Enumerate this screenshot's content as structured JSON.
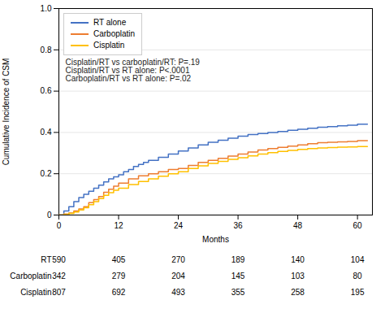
{
  "chart_data": {
    "type": "step",
    "xlabel": "Months",
    "ylabel": "Cumulative Incidence of CSM",
    "xlim": [
      0,
      63
    ],
    "ylim": [
      0,
      1.0
    ],
    "xticks": [
      0,
      12,
      24,
      36,
      48,
      60
    ],
    "yticks": [
      0,
      0.2,
      0.4,
      0.6,
      0.8,
      {
        "value": 1.0,
        "label": "1.0"
      }
    ],
    "grid": "y",
    "legend": "upper left",
    "annotation": "Cisplatin/RT vs carboplatin/RT: P=.19\nCisplatin/RT vs RT alone: P<.0001\nCarboplatin/RT vs RT alone: P=.02",
    "series": [
      {
        "name": "RT alone",
        "color": "#4472c4",
        "x": [
          0,
          1,
          2,
          3,
          4,
          5,
          6,
          7,
          8,
          9,
          10,
          11,
          12,
          13,
          14,
          15,
          16,
          17,
          18,
          20,
          22,
          24,
          26,
          28,
          30,
          32,
          34,
          36,
          38,
          40,
          42,
          44,
          46,
          48,
          50,
          52,
          54,
          56,
          58,
          60,
          62
        ],
        "values": [
          0,
          0.02,
          0.04,
          0.065,
          0.085,
          0.1,
          0.115,
          0.13,
          0.145,
          0.16,
          0.175,
          0.185,
          0.195,
          0.21,
          0.22,
          0.235,
          0.245,
          0.255,
          0.265,
          0.28,
          0.295,
          0.31,
          0.325,
          0.34,
          0.352,
          0.362,
          0.372,
          0.382,
          0.39,
          0.395,
          0.4,
          0.405,
          0.41,
          0.415,
          0.42,
          0.425,
          0.428,
          0.432,
          0.435,
          0.44,
          0.44
        ]
      },
      {
        "name": "Carboplatin",
        "color": "#ed7d31",
        "x": [
          0,
          1,
          2,
          3,
          4,
          5,
          6,
          7,
          8,
          9,
          10,
          11,
          12,
          14,
          16,
          18,
          20,
          22,
          24,
          26,
          28,
          30,
          32,
          34,
          36,
          38,
          40,
          42,
          44,
          46,
          48,
          50,
          52,
          54,
          56,
          58,
          60,
          62
        ],
        "values": [
          0,
          0.005,
          0.01,
          0.02,
          0.03,
          0.04,
          0.06,
          0.075,
          0.09,
          0.11,
          0.125,
          0.14,
          0.155,
          0.175,
          0.19,
          0.2,
          0.21,
          0.22,
          0.225,
          0.24,
          0.255,
          0.265,
          0.275,
          0.285,
          0.295,
          0.305,
          0.315,
          0.322,
          0.328,
          0.334,
          0.34,
          0.345,
          0.35,
          0.352,
          0.354,
          0.356,
          0.36,
          0.36
        ]
      },
      {
        "name": "Cisplatin",
        "color": "#ffc000",
        "x": [
          0,
          1,
          2,
          3,
          4,
          5,
          6,
          7,
          8,
          9,
          10,
          11,
          12,
          14,
          16,
          18,
          20,
          22,
          24,
          26,
          28,
          30,
          32,
          34,
          36,
          38,
          40,
          42,
          44,
          46,
          48,
          50,
          52,
          54,
          56,
          58,
          60,
          62
        ],
        "values": [
          0,
          0.003,
          0.008,
          0.015,
          0.025,
          0.035,
          0.05,
          0.065,
          0.08,
          0.095,
          0.108,
          0.12,
          0.13,
          0.148,
          0.162,
          0.175,
          0.188,
          0.2,
          0.21,
          0.225,
          0.238,
          0.25,
          0.26,
          0.27,
          0.278,
          0.286,
          0.295,
          0.302,
          0.308,
          0.313,
          0.318,
          0.322,
          0.325,
          0.327,
          0.329,
          0.33,
          0.332,
          0.332
        ]
      }
    ],
    "table": {
      "labels": [
        "RT",
        "Carboplatin",
        "Cisplatin"
      ],
      "months": [
        0,
        12,
        24,
        36,
        48,
        60
      ],
      "values": [
        [
          590,
          405,
          270,
          189,
          140,
          104
        ],
        [
          342,
          279,
          204,
          145,
          103,
          80
        ],
        [
          807,
          692,
          493,
          355,
          258,
          195
        ]
      ]
    }
  }
}
